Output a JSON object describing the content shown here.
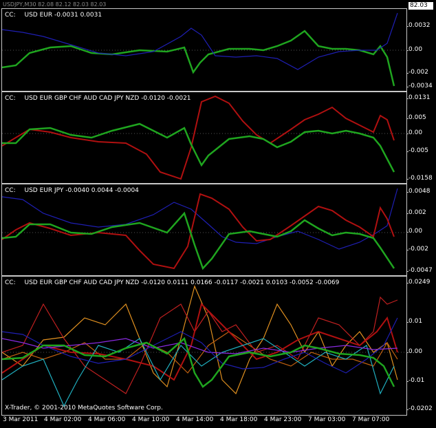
{
  "window": {
    "symbol_header": "USDJPY,M30  82.08 82.12 82.03 82.03",
    "current_price": "82.03",
    "copyright": "X-Trader, © 2001-2010 MetaQuotes Software Corp."
  },
  "panes": [
    {
      "label": "CC:",
      "title": "USD EUR -0.0031 0.0031",
      "ticks": [
        "0.0032",
        "0.00",
        "-0.002",
        "-0.0034"
      ],
      "legend": [
        {
          "name": "USD",
          "color": "#1fa51f"
        },
        {
          "name": "EUR",
          "color": "#1f1fb4"
        }
      ]
    },
    {
      "label": "CC:",
      "title": "USD EUR GBP CHF AUD CAD JPY NZD -0.0120 -0.0021",
      "ticks": [
        "0.0131",
        "0.005",
        "0.00",
        "-0.005",
        "-0.0158"
      ],
      "legend": [
        {
          "name": "USD",
          "color": "#1fa51f"
        },
        {
          "name": "EUR",
          "color": "#1f1fb4"
        },
        {
          "name": "GBP",
          "color": "#b01010"
        },
        {
          "name": "CHF",
          "color": "#c06010"
        },
        {
          "name": "AUD",
          "color": "#e09020"
        },
        {
          "name": "CAD",
          "color": "#8a2be2"
        },
        {
          "name": "JPY",
          "color": "#c02020"
        },
        {
          "name": "NZD",
          "color": "#20b0c0"
        }
      ]
    },
    {
      "label": "CC:",
      "title": "USD EUR JPY -0.0040 0.0044 -0.0004",
      "ticks": [
        "0.0048",
        "0.002",
        "0.00",
        "-0.002",
        "-0.0047"
      ],
      "legend": [
        {
          "name": "USD",
          "color": "#1fa51f"
        },
        {
          "name": "EUR",
          "color": "#1f1fb4"
        },
        {
          "name": "JPY",
          "color": "#b01010"
        }
      ]
    },
    {
      "label": "CC:",
      "title": "USD EUR GBP CHF AUD CAD JPY NZD -0.0120 0.0111 0.0166 -0.0117 -0.0021 0.0103 -0.0052 -0.0069",
      "ticks": [
        "0.0249",
        "0.01",
        "0.00",
        "-0.01",
        "-0.0202"
      ],
      "legend": []
    }
  ],
  "xaxis": {
    "labels": [
      "3 Mar 2011",
      "4 Mar 02:00",
      "4 Mar 06:00",
      "4 Mar 10:00",
      "4 Mar 14:00",
      "4 Mar 18:00",
      "4 Mar 23:00",
      "7 Mar 03:00",
      "7 Mar 07:00"
    ]
  },
  "colors": {
    "usd": "#1fa51f",
    "eur": "#1f1fb4",
    "gbp_jpy_red": "#b01010",
    "grid": "#c8c8c8",
    "background": "#000000"
  }
}
